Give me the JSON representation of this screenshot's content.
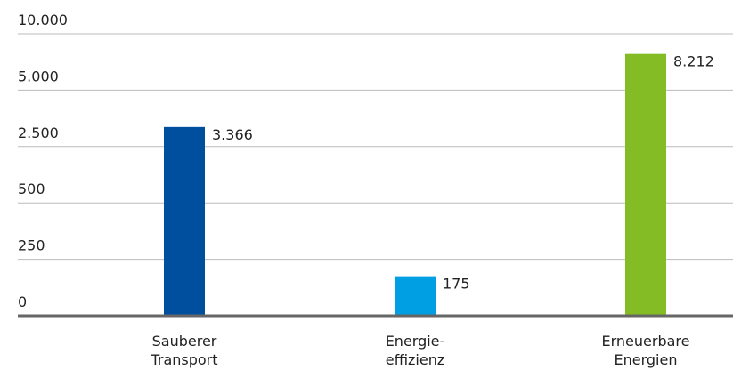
{
  "chart_data": {
    "type": "bar",
    "categories": [
      [
        "Sauberer",
        "Transport"
      ],
      [
        "Energie-",
        "effizienz"
      ],
      [
        "Erneuerbare",
        "Energien"
      ]
    ],
    "values": [
      3366,
      175,
      8212
    ],
    "value_labels": [
      "3.366",
      "175",
      "8.212"
    ],
    "colors": [
      "#004f9f",
      "#009fe3",
      "#84bc26"
    ],
    "ylim": [
      0,
      10000
    ],
    "yticks": [
      0,
      250,
      500,
      {
        "value": 2500,
        "label": "2.500"
      },
      {
        "value": 5000,
        "label": "5.000"
      },
      {
        "value": 10000,
        "label": "10.000"
      }
    ],
    "yscale": "segmented",
    "grid": true
  }
}
